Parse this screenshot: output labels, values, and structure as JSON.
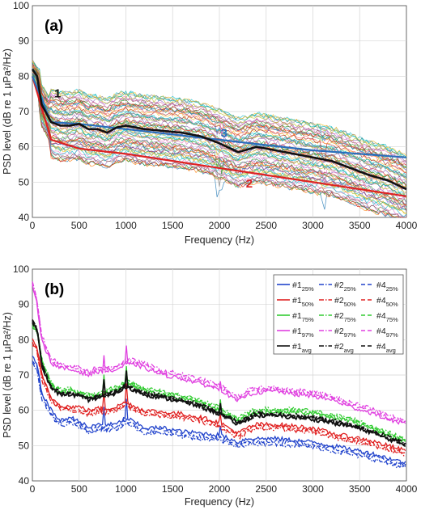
{
  "chart_data": [
    {
      "type": "line",
      "panel_label": "(a)",
      "xlabel": "Frequency (Hz)",
      "ylabel": "PSD level (dB re 1 µPa²/Hz)",
      "xlim": [
        0,
        4000
      ],
      "ylim": [
        40,
        100
      ],
      "xticks": [
        0,
        500,
        1000,
        1500,
        2000,
        2500,
        3000,
        3500,
        4000
      ],
      "yticks": [
        40,
        50,
        60,
        70,
        80,
        90,
        100
      ],
      "grid": true,
      "annotations": [
        {
          "text": "1",
          "x": 270,
          "y": 74,
          "color": "#111111"
        },
        {
          "text": "2",
          "x": 2320,
          "y": 48.5,
          "color": "#dd2222"
        },
        {
          "text": "3",
          "x": 2050,
          "y": 62.8,
          "color": "#2a6ebb"
        }
      ],
      "series": [
        {
          "label": "1",
          "color": "#111111",
          "x": [
            0,
            50,
            100,
            200,
            300,
            400,
            500,
            600,
            700,
            800,
            900,
            1000,
            1200,
            1400,
            1600,
            1800,
            2000,
            2200,
            2400,
            2600,
            2800,
            3000,
            3200,
            3400,
            3600,
            3800,
            4000
          ],
          "y": [
            82,
            80,
            72,
            67,
            66,
            66,
            66.5,
            65,
            65,
            64,
            65.5,
            66,
            65,
            64.5,
            64,
            63,
            61,
            58.5,
            60,
            59,
            58,
            57,
            56,
            54,
            52,
            50.5,
            48
          ]
        },
        {
          "label": "2",
          "color": "#dd2222",
          "x": [
            0,
            200,
            500,
            1000,
            1500,
            2000,
            2500,
            3000,
            3500,
            4000
          ],
          "y": [
            80,
            62,
            59.5,
            58,
            56,
            54,
            52,
            50,
            48,
            46
          ]
        },
        {
          "label": "3",
          "color": "#2a6ebb",
          "x": [
            0,
            200,
            500,
            1000,
            1500,
            2000,
            2500,
            3000,
            3500,
            4000
          ],
          "y": [
            80,
            67,
            66.5,
            65,
            63.5,
            62,
            60.5,
            59,
            58,
            57
          ]
        }
      ]
    },
    {
      "type": "line",
      "panel_label": "(b)",
      "xlabel": "Frequency (Hz)",
      "ylabel": "PSD level (dB re 1 µPa²/Hz)",
      "xlim": [
        0,
        4000
      ],
      "ylim": [
        40,
        100
      ],
      "xticks": [
        0,
        500,
        1000,
        1500,
        2000,
        2500,
        3000,
        3500,
        4000
      ],
      "yticks": [
        40,
        50,
        60,
        70,
        80,
        90,
        100
      ],
      "grid": true,
      "legend_position": "top-right",
      "series": [
        {
          "name": "#1",
          "sub": "25%",
          "color": "#2244cc",
          "dash": "solid",
          "offset": 0,
          "base": "p25"
        },
        {
          "name": "#2",
          "sub": "25%",
          "color": "#2244cc",
          "dash": "dashdot",
          "offset": -1.5,
          "base": "p25"
        },
        {
          "name": "#4",
          "sub": "25%",
          "color": "#2244cc",
          "dash": "dashed",
          "offset": -0.8,
          "base": "p25"
        },
        {
          "name": "#1",
          "sub": "50%",
          "color": "#e02020",
          "dash": "solid",
          "offset": 0,
          "base": "p50"
        },
        {
          "name": "#2",
          "sub": "50%",
          "color": "#e02020",
          "dash": "dashdot",
          "offset": -1.2,
          "base": "p50"
        },
        {
          "name": "#4",
          "sub": "50%",
          "color": "#e02020",
          "dash": "dashed",
          "offset": -0.6,
          "base": "p50"
        },
        {
          "name": "#1",
          "sub": "75%",
          "color": "#33cc33",
          "dash": "solid",
          "offset": 0,
          "base": "p75"
        },
        {
          "name": "#2",
          "sub": "75%",
          "color": "#33cc33",
          "dash": "dashdot",
          "offset": 0.8,
          "base": "p75"
        },
        {
          "name": "#4",
          "sub": "75%",
          "color": "#33cc33",
          "dash": "dashed",
          "offset": 0.4,
          "base": "p75"
        },
        {
          "name": "#1",
          "sub": "97%",
          "color": "#e040e0",
          "dash": "solid",
          "offset": 0,
          "base": "p97"
        },
        {
          "name": "#2",
          "sub": "97%",
          "color": "#e040e0",
          "dash": "dashdot",
          "offset": 1.2,
          "base": "p97"
        },
        {
          "name": "#4",
          "sub": "97%",
          "color": "#e040e0",
          "dash": "dashed",
          "offset": 0.6,
          "base": "p97"
        },
        {
          "name": "#1",
          "sub": "avg",
          "color": "#111111",
          "dash": "solid",
          "offset": 0,
          "base": "avg"
        },
        {
          "name": "#2",
          "sub": "avg",
          "color": "#111111",
          "dash": "dashdot",
          "offset": 0.5,
          "base": "avg"
        },
        {
          "name": "#4",
          "sub": "avg",
          "color": "#111111",
          "dash": "dashed",
          "offset": 0.3,
          "base": "avg"
        }
      ],
      "bases": {
        "x": [
          0,
          50,
          100,
          200,
          300,
          400,
          500,
          600,
          700,
          800,
          900,
          1000,
          1100,
          1200,
          1400,
          1600,
          1800,
          2000,
          2200,
          2300,
          2400,
          2600,
          2800,
          3000,
          3200,
          3400,
          3600,
          3800,
          4000
        ],
        "p25": [
          75,
          73,
          65,
          60,
          57,
          58,
          57,
          55,
          56,
          56,
          56,
          58,
          56.5,
          55,
          55,
          54,
          53.5,
          53,
          51,
          52,
          52,
          52,
          51.5,
          51,
          50,
          49,
          48,
          46.5,
          45
        ],
        "p50": [
          80,
          78,
          70,
          63.5,
          61.5,
          61,
          61,
          60,
          60.5,
          60.5,
          61,
          62.5,
          61,
          60,
          59.5,
          59,
          58,
          56.5,
          53.5,
          55,
          56,
          56,
          55.5,
          55,
          53.5,
          52.5,
          51.5,
          50,
          48.5
        ],
        "p75": [
          84,
          82,
          74,
          67,
          65,
          65.5,
          64.5,
          64,
          64,
          65,
          66,
          67.5,
          66.5,
          65.5,
          64.5,
          63.5,
          62,
          60,
          57,
          58.5,
          59.5,
          59.5,
          59.5,
          59,
          58,
          57,
          55,
          53,
          51
        ],
        "p97": [
          95,
          90,
          80,
          73.5,
          72,
          71.5,
          71,
          70,
          71,
          71,
          71.5,
          73,
          73,
          72,
          70,
          69,
          67.5,
          66,
          62.5,
          64.5,
          65,
          65.5,
          64.5,
          64,
          63,
          61,
          59.5,
          57.5,
          56
        ],
        "avg": [
          85,
          83,
          73,
          66,
          64.5,
          64.5,
          64,
          63,
          63.5,
          64,
          65,
          66.5,
          65.5,
          64.5,
          63.5,
          62.5,
          61,
          59,
          56,
          57.5,
          58.5,
          58.5,
          58,
          57.5,
          56.5,
          55.5,
          54,
          52,
          50
        ]
      }
    }
  ]
}
